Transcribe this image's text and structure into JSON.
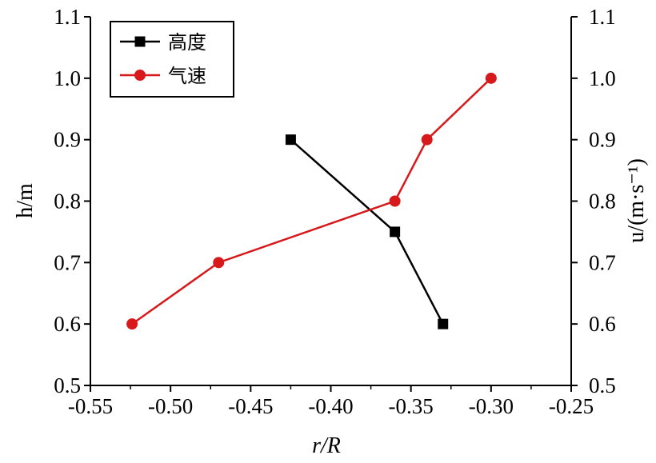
{
  "chart_data": {
    "type": "line",
    "xlabel": "r/R",
    "ylabel_left": "h/m",
    "ylabel_right": "u/(m·s⁻¹)",
    "xlim": [
      -0.55,
      -0.25
    ],
    "ylim": [
      0.5,
      1.1
    ],
    "xticks": [
      "-0.55",
      "-0.50",
      "-0.45",
      "-0.40",
      "-0.35",
      "-0.30",
      "-0.25"
    ],
    "yticks": [
      "0.5",
      "0.6",
      "0.7",
      "0.8",
      "0.9",
      "1.0",
      "1.1"
    ],
    "legend_position": "top-left",
    "series": [
      {
        "name": "高度",
        "color": "#000000",
        "marker": "square",
        "x": [
          -0.425,
          -0.36,
          -0.33
        ],
        "y": [
          0.9,
          0.75,
          0.6
        ]
      },
      {
        "name": "气速",
        "color": "#d7191c",
        "marker": "circle",
        "x": [
          -0.524,
          -0.47,
          -0.36,
          -0.34,
          -0.3
        ],
        "y": [
          0.6,
          0.7,
          0.8,
          0.9,
          1.0
        ]
      }
    ]
  }
}
